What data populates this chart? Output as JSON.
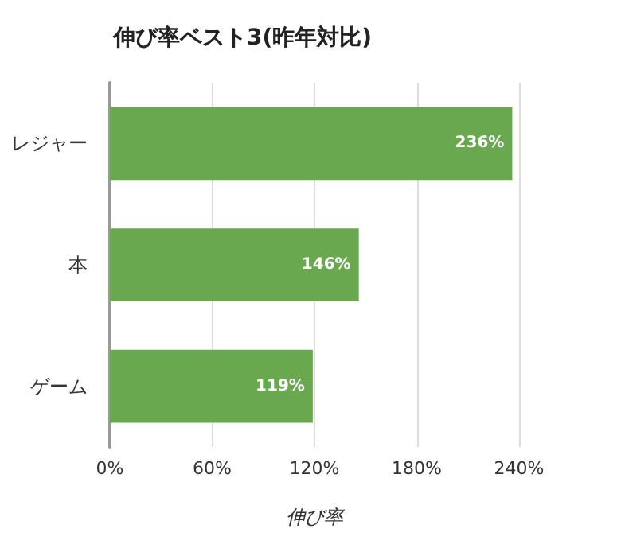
{
  "chart_data": {
    "type": "bar",
    "orientation": "horizontal",
    "title": "伸び率ベスト3(昨年対比)",
    "xlabel": "伸び率",
    "categories": [
      "レジャー",
      "本",
      "ゲーム"
    ],
    "values": [
      236,
      146,
      119
    ],
    "color": "#6aa84f",
    "value_labels": [
      "236%",
      "146%",
      "119%"
    ],
    "xlim": [
      0,
      240
    ],
    "xticks": [
      {
        "value": 0,
        "label": "0%"
      },
      {
        "value": 60,
        "label": "60%"
      },
      {
        "value": 120,
        "label": "120%"
      },
      {
        "value": 180,
        "label": "180%"
      },
      {
        "value": 240,
        "label": "240%"
      }
    ],
    "grid": "x"
  }
}
